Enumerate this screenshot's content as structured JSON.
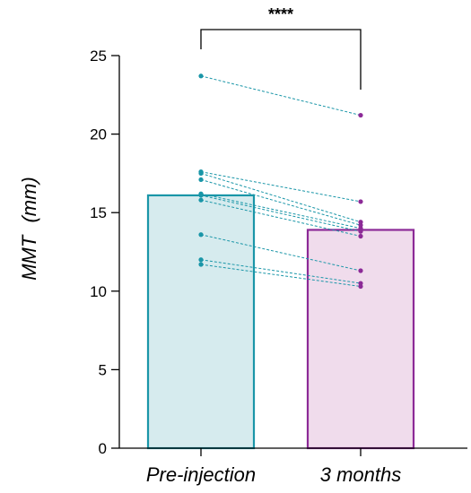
{
  "chart_data": {
    "type": "bar",
    "categories": [
      "Pre-injection",
      "3 months"
    ],
    "values": [
      16.1,
      13.9
    ],
    "ylabel": "MMT",
    "ylabel_unit": "(mm)",
    "ylim": [
      0,
      25
    ],
    "yticks": [
      "0",
      "5",
      "10",
      "15",
      "20",
      "25"
    ],
    "grid": false,
    "significance": "****",
    "bar_fill_colors": [
      "#d6ebee",
      "#f0dcec"
    ],
    "bar_edge_colors": [
      "#1a96a8",
      "#8c2a97"
    ],
    "point_colors": [
      "#1a96a8",
      "#8c2a97"
    ],
    "paired_points": [
      {
        "pre": 23.7,
        "post": 21.2
      },
      {
        "pre": 17.6,
        "post": 15.7
      },
      {
        "pre": 17.5,
        "post": 14.4
      },
      {
        "pre": 17.1,
        "post": 14.2
      },
      {
        "pre": 16.2,
        "post": 14.0
      },
      {
        "pre": 16.1,
        "post": 13.8
      },
      {
        "pre": 15.8,
        "post": 13.5
      },
      {
        "pre": 13.6,
        "post": 11.3
      },
      {
        "pre": 12.0,
        "post": 10.5
      },
      {
        "pre": 11.7,
        "post": 10.3
      }
    ]
  }
}
